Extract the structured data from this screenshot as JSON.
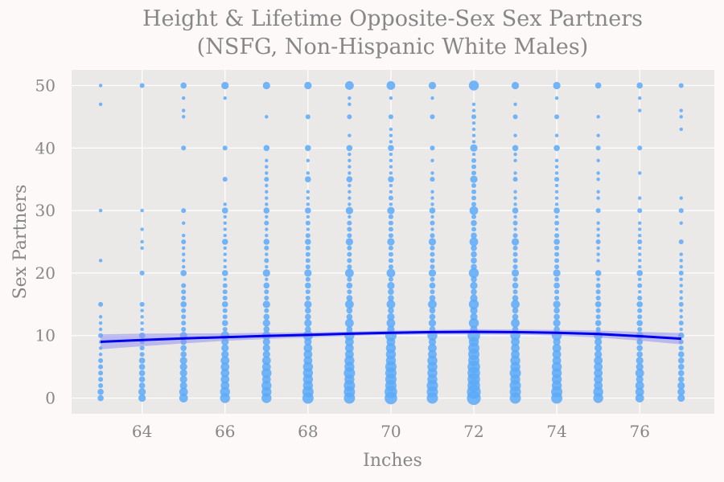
{
  "chart_data": {
    "type": "scatter",
    "title": "Height & Lifetime Opposite-Sex Sex Partners",
    "subtitle": "(NSFG, Non-Hispanic White Males)",
    "xlabel": "Inches",
    "ylabel": "Sex Partners",
    "xlim": [
      62.3,
      77.8
    ],
    "ylim": [
      -2.5,
      52.5
    ],
    "xticks": [
      64,
      66,
      68,
      70,
      72,
      74,
      76
    ],
    "yticks": [
      0,
      10,
      20,
      30,
      40,
      50
    ],
    "grid": true,
    "x_values": [
      63,
      64,
      65,
      66,
      67,
      68,
      69,
      70,
      71,
      72,
      73,
      74,
      75,
      76,
      77
    ],
    "point_size": "frequency of respondents at each (height, partners) value",
    "scatter_series": [
      {
        "x": 63,
        "y": [
          0,
          1,
          2,
          3,
          4,
          5,
          6,
          7,
          8,
          9,
          10,
          11,
          12,
          13,
          15,
          22,
          30,
          47,
          50
        ],
        "sizes": [
          4,
          4,
          3,
          3,
          3,
          3,
          3,
          2,
          2,
          2,
          3,
          2,
          2,
          2,
          3,
          2,
          2,
          2,
          2
        ]
      },
      {
        "x": 64,
        "y": [
          0,
          1,
          2,
          3,
          4,
          5,
          6,
          7,
          8,
          9,
          10,
          11,
          12,
          13,
          14,
          15,
          20,
          24,
          25,
          27,
          30,
          50
        ],
        "sizes": [
          5,
          5,
          4,
          4,
          4,
          4,
          4,
          3,
          3,
          3,
          4,
          2,
          2,
          2,
          2,
          3,
          3,
          2,
          2,
          2,
          2,
          3
        ]
      },
      {
        "x": 65,
        "y": [
          0,
          1,
          2,
          3,
          4,
          5,
          6,
          7,
          8,
          9,
          10,
          11,
          12,
          13,
          14,
          15,
          16,
          17,
          18,
          20,
          21,
          22,
          23,
          24,
          25,
          26,
          28,
          30,
          40,
          45,
          46,
          48,
          50
        ],
        "sizes": [
          6,
          6,
          5,
          5,
          5,
          5,
          5,
          4,
          4,
          4,
          5,
          3,
          3,
          3,
          3,
          4,
          3,
          3,
          3,
          4,
          2,
          2,
          2,
          2,
          3,
          2,
          2,
          3,
          3,
          2,
          2,
          2,
          4
        ]
      },
      {
        "x": 66,
        "y": [
          0,
          1,
          2,
          3,
          4,
          5,
          6,
          7,
          8,
          9,
          10,
          11,
          12,
          13,
          14,
          15,
          16,
          17,
          18,
          19,
          20,
          21,
          22,
          23,
          24,
          25,
          26,
          27,
          28,
          29,
          30,
          31,
          35,
          40,
          48,
          50
        ],
        "sizes": [
          7,
          7,
          6,
          6,
          6,
          6,
          6,
          5,
          5,
          5,
          6,
          3,
          4,
          3,
          3,
          4,
          3,
          3,
          3,
          2,
          4,
          2,
          2,
          2,
          2,
          4,
          2,
          2,
          2,
          2,
          4,
          2,
          3,
          3,
          2,
          5
        ]
      },
      {
        "x": 67,
        "y": [
          0,
          1,
          2,
          3,
          4,
          5,
          6,
          7,
          8,
          9,
          10,
          11,
          12,
          13,
          14,
          15,
          16,
          17,
          18,
          19,
          20,
          21,
          22,
          23,
          24,
          25,
          26,
          27,
          28,
          29,
          30,
          31,
          32,
          33,
          34,
          35,
          36,
          37,
          38,
          40,
          45,
          50
        ],
        "sizes": [
          7,
          7,
          7,
          6,
          7,
          6,
          6,
          5,
          5,
          5,
          6,
          4,
          5,
          4,
          3,
          5,
          3,
          3,
          4,
          2,
          5,
          2,
          3,
          2,
          3,
          4,
          2,
          2,
          3,
          2,
          4,
          2,
          2,
          2,
          2,
          3,
          2,
          2,
          2,
          4,
          2,
          5
        ]
      },
      {
        "x": 68,
        "y": [
          0,
          1,
          2,
          3,
          4,
          5,
          6,
          7,
          8,
          9,
          10,
          11,
          12,
          13,
          14,
          15,
          16,
          17,
          18,
          19,
          20,
          21,
          22,
          23,
          24,
          25,
          26,
          27,
          28,
          29,
          30,
          31,
          32,
          33,
          35,
          36,
          38,
          40,
          45,
          50
        ],
        "sizes": [
          8,
          8,
          7,
          7,
          7,
          7,
          6,
          6,
          6,
          5,
          7,
          4,
          5,
          4,
          4,
          5,
          3,
          3,
          4,
          3,
          5,
          3,
          3,
          3,
          3,
          4,
          3,
          2,
          3,
          2,
          4,
          2,
          2,
          2,
          4,
          2,
          2,
          4,
          3,
          5
        ]
      },
      {
        "x": 69,
        "y": [
          0,
          1,
          2,
          3,
          4,
          5,
          6,
          7,
          8,
          9,
          10,
          11,
          12,
          13,
          14,
          15,
          16,
          17,
          18,
          19,
          20,
          21,
          22,
          23,
          24,
          25,
          26,
          27,
          28,
          29,
          30,
          31,
          32,
          33,
          34,
          35,
          36,
          37,
          38,
          39,
          40,
          42,
          45,
          47,
          48,
          50
        ],
        "sizes": [
          8,
          8,
          8,
          7,
          8,
          7,
          7,
          6,
          6,
          6,
          7,
          4,
          6,
          4,
          4,
          6,
          4,
          3,
          4,
          3,
          6,
          3,
          3,
          3,
          3,
          5,
          3,
          3,
          3,
          2,
          5,
          2,
          2,
          2,
          2,
          4,
          2,
          2,
          2,
          2,
          4,
          2,
          3,
          2,
          2,
          6
        ]
      },
      {
        "x": 70,
        "y": [
          0,
          1,
          2,
          3,
          4,
          5,
          6,
          7,
          8,
          9,
          10,
          11,
          12,
          13,
          14,
          15,
          16,
          17,
          18,
          19,
          20,
          21,
          22,
          23,
          24,
          25,
          26,
          27,
          28,
          29,
          30,
          31,
          32,
          33,
          34,
          35,
          36,
          37,
          38,
          39,
          40,
          41,
          42,
          43,
          45,
          48,
          50
        ],
        "sizes": [
          9,
          9,
          8,
          8,
          8,
          8,
          7,
          7,
          7,
          6,
          8,
          5,
          6,
          5,
          4,
          6,
          4,
          4,
          5,
          3,
          6,
          3,
          3,
          3,
          3,
          5,
          3,
          3,
          3,
          3,
          5,
          2,
          3,
          2,
          2,
          4,
          2,
          2,
          2,
          2,
          4,
          2,
          2,
          2,
          3,
          2,
          6
        ]
      },
      {
        "x": 71,
        "y": [
          0,
          1,
          2,
          3,
          4,
          5,
          6,
          7,
          8,
          9,
          10,
          11,
          12,
          13,
          14,
          15,
          16,
          17,
          18,
          19,
          20,
          21,
          22,
          23,
          24,
          25,
          26,
          27,
          28,
          29,
          30,
          31,
          32,
          33,
          35,
          36,
          38,
          40,
          45,
          48,
          50
        ],
        "sizes": [
          8,
          8,
          8,
          7,
          7,
          7,
          7,
          6,
          6,
          5,
          7,
          4,
          5,
          4,
          4,
          6,
          4,
          3,
          4,
          3,
          5,
          3,
          3,
          3,
          3,
          5,
          3,
          2,
          3,
          2,
          4,
          2,
          2,
          2,
          3,
          2,
          2,
          3,
          3,
          2,
          5
        ]
      },
      {
        "x": 72,
        "y": [
          0,
          1,
          2,
          3,
          4,
          5,
          6,
          7,
          8,
          9,
          10,
          11,
          12,
          13,
          14,
          15,
          16,
          17,
          18,
          19,
          20,
          21,
          22,
          23,
          24,
          25,
          26,
          27,
          28,
          29,
          30,
          31,
          32,
          33,
          34,
          35,
          36,
          37,
          38,
          39,
          40,
          41,
          42,
          43,
          44,
          45,
          46,
          47,
          50
        ],
        "sizes": [
          10,
          10,
          9,
          9,
          9,
          9,
          8,
          8,
          8,
          7,
          9,
          5,
          7,
          5,
          5,
          7,
          5,
          4,
          5,
          4,
          7,
          4,
          4,
          4,
          4,
          6,
          4,
          3,
          4,
          3,
          6,
          3,
          3,
          3,
          3,
          5,
          3,
          3,
          3,
          2,
          5,
          2,
          2,
          2,
          2,
          3,
          2,
          2,
          7
        ]
      },
      {
        "x": 73,
        "y": [
          0,
          1,
          2,
          3,
          4,
          5,
          6,
          7,
          8,
          9,
          10,
          11,
          12,
          13,
          14,
          15,
          16,
          17,
          18,
          19,
          20,
          21,
          22,
          23,
          24,
          25,
          26,
          27,
          28,
          29,
          30,
          31,
          32,
          33,
          35,
          36,
          38,
          39,
          40,
          42,
          45,
          47,
          50
        ],
        "sizes": [
          8,
          8,
          8,
          7,
          8,
          7,
          7,
          6,
          6,
          6,
          7,
          4,
          6,
          4,
          4,
          6,
          4,
          3,
          4,
          3,
          5,
          3,
          3,
          3,
          3,
          5,
          3,
          2,
          3,
          2,
          4,
          2,
          2,
          2,
          3,
          2,
          2,
          2,
          4,
          2,
          3,
          2,
          5
        ]
      },
      {
        "x": 74,
        "y": [
          0,
          1,
          2,
          3,
          4,
          5,
          6,
          7,
          8,
          9,
          10,
          11,
          12,
          13,
          14,
          15,
          16,
          17,
          18,
          19,
          20,
          21,
          22,
          23,
          24,
          25,
          26,
          27,
          28,
          29,
          30,
          31,
          32,
          33,
          34,
          35,
          36,
          37,
          38,
          40,
          42,
          45,
          48,
          50
        ],
        "sizes": [
          8,
          8,
          7,
          7,
          7,
          7,
          6,
          6,
          6,
          5,
          7,
          4,
          5,
          4,
          4,
          5,
          3,
          3,
          4,
          3,
          5,
          3,
          3,
          3,
          3,
          4,
          3,
          2,
          3,
          2,
          4,
          2,
          2,
          2,
          2,
          3,
          2,
          2,
          2,
          4,
          2,
          3,
          2,
          5
        ]
      },
      {
        "x": 75,
        "y": [
          0,
          1,
          2,
          3,
          4,
          5,
          6,
          7,
          8,
          9,
          10,
          11,
          12,
          13,
          14,
          15,
          16,
          17,
          18,
          19,
          20,
          22,
          23,
          24,
          25,
          26,
          27,
          28,
          30,
          32,
          33,
          35,
          36,
          38,
          40,
          42,
          45,
          50
        ],
        "sizes": [
          7,
          7,
          6,
          6,
          6,
          6,
          6,
          5,
          5,
          5,
          6,
          3,
          4,
          3,
          3,
          4,
          3,
          3,
          3,
          2,
          4,
          2,
          2,
          2,
          3,
          2,
          2,
          2,
          3,
          2,
          2,
          2,
          2,
          2,
          3,
          2,
          2,
          4
        ]
      },
      {
        "x": 76,
        "y": [
          0,
          1,
          2,
          3,
          4,
          5,
          6,
          7,
          8,
          9,
          10,
          11,
          12,
          13,
          14,
          15,
          16,
          17,
          18,
          19,
          20,
          21,
          22,
          23,
          24,
          25,
          26,
          27,
          28,
          30,
          32,
          36,
          40,
          46,
          48,
          50
        ],
        "sizes": [
          6,
          6,
          6,
          5,
          6,
          5,
          5,
          4,
          4,
          4,
          5,
          3,
          4,
          3,
          3,
          4,
          3,
          2,
          3,
          2,
          4,
          2,
          2,
          2,
          2,
          3,
          2,
          2,
          2,
          3,
          2,
          2,
          3,
          2,
          2,
          4
        ]
      },
      {
        "x": 77,
        "y": [
          0,
          1,
          2,
          3,
          4,
          5,
          6,
          7,
          8,
          9,
          10,
          11,
          12,
          13,
          14,
          15,
          16,
          17,
          18,
          19,
          20,
          21,
          22,
          23,
          25,
          28,
          30,
          32,
          43,
          45,
          46,
          50
        ],
        "sizes": [
          5,
          5,
          5,
          4,
          4,
          4,
          4,
          4,
          3,
          3,
          4,
          2,
          3,
          2,
          2,
          3,
          2,
          2,
          2,
          2,
          3,
          2,
          2,
          2,
          3,
          2,
          3,
          2,
          2,
          2,
          2,
          3
        ]
      }
    ],
    "trend_series": {
      "type": "line",
      "x": [
        63,
        64,
        65,
        66,
        67,
        68,
        69,
        70,
        71,
        72,
        73,
        74,
        75,
        76,
        77
      ],
      "y": [
        9.0,
        9.3,
        9.55,
        9.75,
        9.95,
        10.1,
        10.3,
        10.45,
        10.55,
        10.6,
        10.55,
        10.45,
        10.25,
        9.9,
        9.5
      ],
      "ci_lower": [
        7.8,
        8.3,
        8.75,
        9.15,
        9.45,
        9.7,
        9.95,
        10.1,
        10.2,
        10.2,
        10.15,
        10.0,
        9.7,
        9.2,
        8.6
      ],
      "ci_upper": [
        10.2,
        10.3,
        10.35,
        10.35,
        10.45,
        10.5,
        10.65,
        10.8,
        10.9,
        11.0,
        10.95,
        10.9,
        10.8,
        10.6,
        10.4
      ]
    },
    "colors": {
      "page_background": "#fcf9f8",
      "plot_background": "#ebe8e8",
      "grid": "#ffffff",
      "points": "#5aa9f8",
      "trend_line": "#0000ee",
      "ci_band": "#9292ee",
      "text": "#878787"
    }
  }
}
